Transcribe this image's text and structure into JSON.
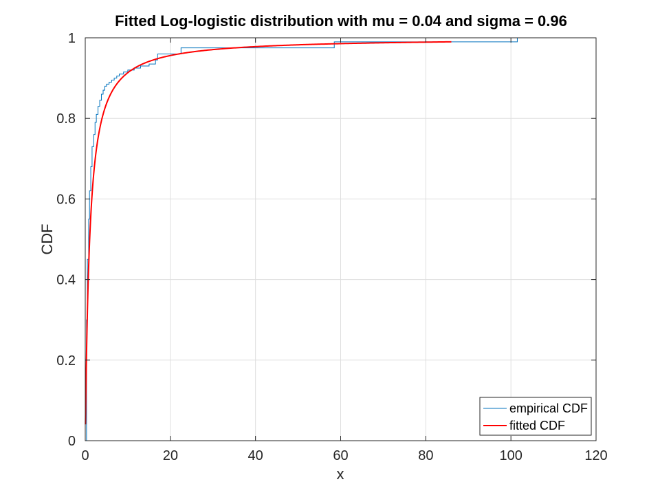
{
  "chart_data": {
    "type": "line",
    "title": "Fitted Log-logistic distribution with mu = 0.04 and sigma = 0.96",
    "xlabel": "x",
    "ylabel": "CDF",
    "xlim": [
      0,
      120
    ],
    "ylim": [
      0,
      1
    ],
    "xticks": [
      0,
      20,
      40,
      60,
      80,
      100,
      120
    ],
    "yticks": [
      0,
      0.2,
      0.4,
      0.6,
      0.8,
      1
    ],
    "xtick_labels": [
      "0",
      "20",
      "40",
      "60",
      "80",
      "100",
      "120"
    ],
    "ytick_labels": [
      "0",
      "0.2",
      "0.4",
      "0.6",
      "0.8",
      "1"
    ],
    "grid": true,
    "legend_position": "bottom-right",
    "series": [
      {
        "name": "empirical CDF",
        "color": "#0072bd",
        "style": "step",
        "x": [
          0.0,
          0.3,
          0.5,
          0.8,
          1.0,
          1.3,
          1.6,
          2.0,
          2.3,
          2.6,
          3.0,
          3.4,
          3.8,
          4.2,
          4.6,
          5.0,
          5.6,
          6.2,
          6.8,
          7.4,
          8.0,
          9.0,
          10.0,
          11.5,
          13.0,
          15.0,
          16.5,
          17.0,
          22.0,
          22.5,
          58.5,
          101.0,
          101.5
        ],
        "y": [
          0.0,
          0.3,
          0.45,
          0.55,
          0.62,
          0.68,
          0.73,
          0.76,
          0.79,
          0.81,
          0.83,
          0.845,
          0.86,
          0.87,
          0.88,
          0.885,
          0.89,
          0.895,
          0.9,
          0.905,
          0.91,
          0.915,
          0.92,
          0.925,
          0.93,
          0.935,
          0.945,
          0.96,
          0.96,
          0.975,
          0.99,
          0.99,
          1.0
        ]
      },
      {
        "name": "fitted CDF",
        "color": "#ff0000",
        "style": "line",
        "mu": 0.04,
        "sigma": 0.96,
        "x_range": [
          0.05,
          86
        ]
      }
    ]
  }
}
